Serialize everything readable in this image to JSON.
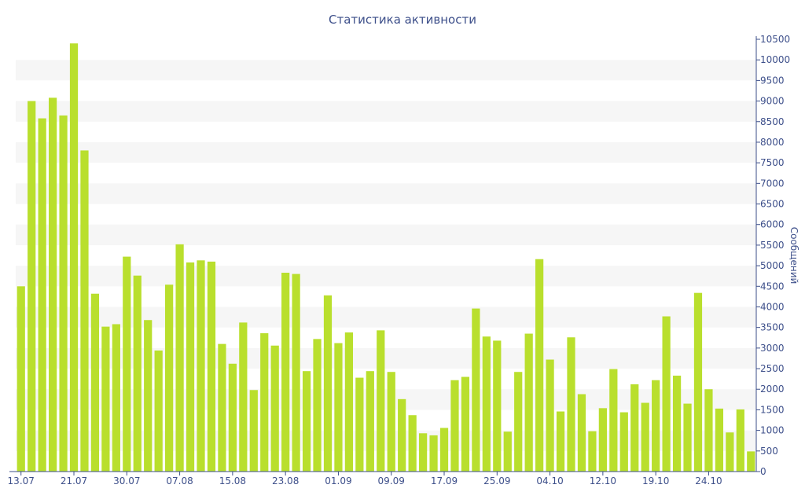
{
  "chart_data": {
    "type": "bar",
    "title": "Статистика активности",
    "xlabel": "",
    "ylabel": "Сообщений",
    "ylim": [
      0,
      10500
    ],
    "yticks": [
      0,
      500,
      1000,
      1500,
      2000,
      2500,
      3000,
      3500,
      4000,
      4500,
      5000,
      5500,
      6000,
      6500,
      7000,
      7500,
      8000,
      8500,
      9000,
      9500,
      10000,
      10500
    ],
    "xtick_labels": [
      {
        "index": 0,
        "label": "13.07"
      },
      {
        "index": 5,
        "label": "21.07"
      },
      {
        "index": 10,
        "label": "30.07"
      },
      {
        "index": 15,
        "label": "07.08"
      },
      {
        "index": 20,
        "label": "15.08"
      },
      {
        "index": 25,
        "label": "23.08"
      },
      {
        "index": 30,
        "label": "01.09"
      },
      {
        "index": 35,
        "label": "09.09"
      },
      {
        "index": 40,
        "label": "17.09"
      },
      {
        "index": 45,
        "label": "25.09"
      },
      {
        "index": 50,
        "label": "04.10"
      },
      {
        "index": 55,
        "label": "12.10"
      },
      {
        "index": 60,
        "label": "19.10"
      },
      {
        "index": 65,
        "label": "24.10"
      }
    ],
    "values": [
      4500,
      9000,
      8580,
      9080,
      8650,
      10400,
      7800,
      4320,
      3520,
      3580,
      5220,
      4760,
      3680,
      2940,
      4540,
      5520,
      5080,
      5130,
      5100,
      3100,
      2620,
      3620,
      1980,
      3360,
      3060,
      4830,
      4800,
      2440,
      3220,
      4280,
      3120,
      3380,
      2280,
      2440,
      3430,
      2420,
      1760,
      1370,
      930,
      880,
      1060,
      2220,
      2300,
      3960,
      3280,
      3180,
      970,
      2420,
      3350,
      5160,
      2720,
      1460,
      3260,
      1880,
      980,
      1540,
      2490,
      1440,
      2120,
      1670,
      2220,
      3770,
      2330,
      1650,
      4340,
      2000,
      1530,
      950,
      1510,
      490
    ],
    "grid": true,
    "legend": "none",
    "colors": {
      "bar": "#b9df2d",
      "band": "#f6f6f6",
      "axis": "#3d4f8a",
      "title": "#3d4f8a"
    }
  }
}
